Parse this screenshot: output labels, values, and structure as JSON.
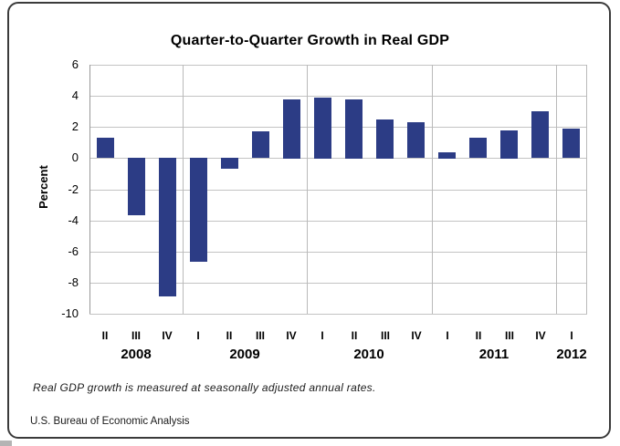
{
  "chart_data": {
    "type": "bar",
    "title": "Quarter-to-Quarter Growth in Real GDP",
    "ylabel": "Percent",
    "ylim": [
      -10,
      6
    ],
    "ytick_step": 2,
    "yticks": [
      6,
      4,
      2,
      0,
      -2,
      -4,
      -6,
      -8,
      -10
    ],
    "grid": true,
    "legend_position": "none",
    "bar_color": "#2c3c85",
    "gridline_color": "#c3c3c3",
    "categories": [
      "II",
      "III",
      "IV",
      "I",
      "II",
      "III",
      "IV",
      "I",
      "II",
      "III",
      "IV",
      "I",
      "II",
      "III",
      "IV",
      "I"
    ],
    "values": [
      1.3,
      -3.7,
      -8.9,
      -6.7,
      -0.7,
      1.7,
      3.8,
      3.9,
      3.8,
      2.5,
      2.3,
      0.4,
      1.3,
      1.8,
      3.0,
      1.9
    ],
    "year_groups": [
      {
        "label": "2008",
        "quarters": 3
      },
      {
        "label": "2009",
        "quarters": 4
      },
      {
        "label": "2010",
        "quarters": 4
      },
      {
        "label": "2011",
        "quarters": 4
      },
      {
        "label": "2012",
        "quarters": 1
      }
    ]
  },
  "footnote": "Real GDP growth is measured at seasonally adjusted annual rates.",
  "source": "U.S. Bureau of Economic Analysis"
}
